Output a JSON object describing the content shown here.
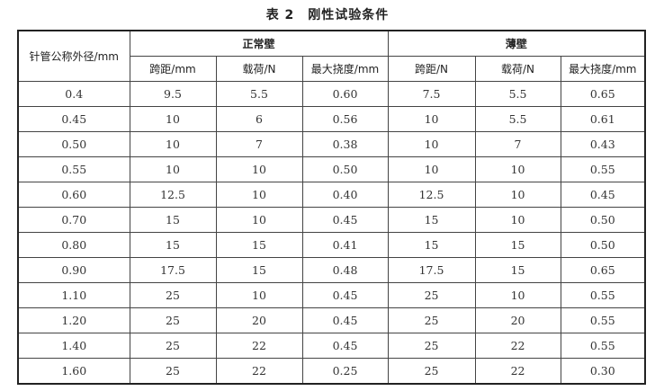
{
  "title": "表 2　刚性试验条件",
  "header": {
    "first_col": "针管公称外径/mm",
    "groups": [
      "正常壁",
      "薄壁"
    ],
    "sub": [
      "跨距/mm",
      "载荷/N",
      "最大挠度/mm",
      "跨距/N",
      "载荷/N",
      "最大挠度/mm"
    ]
  },
  "rows": [
    [
      "0.4",
      "9.5",
      "5.5",
      "0.60",
      "7.5",
      "5.5",
      "0.65"
    ],
    [
      "0.45",
      "10",
      "6",
      "0.56",
      "10",
      "5.5",
      "0.61"
    ],
    [
      "0.50",
      "10",
      "7",
      "0.38",
      "10",
      "7",
      "0.43"
    ],
    [
      "0.55",
      "10",
      "10",
      "0.50",
      "10",
      "10",
      "0.55"
    ],
    [
      "0.60",
      "12.5",
      "10",
      "0.40",
      "12.5",
      "10",
      "0.45"
    ],
    [
      "0.70",
      "15",
      "10",
      "0.45",
      "15",
      "10",
      "0.50"
    ],
    [
      "0.80",
      "15",
      "15",
      "0.41",
      "15",
      "15",
      "0.50"
    ],
    [
      "0.90",
      "17.5",
      "15",
      "0.48",
      "17.5",
      "15",
      "0.65"
    ],
    [
      "1.10",
      "25",
      "10",
      "0.45",
      "25",
      "10",
      "0.55"
    ],
    [
      "1.20",
      "25",
      "20",
      "0.45",
      "25",
      "20",
      "0.55"
    ],
    [
      "1.40",
      "25",
      "22",
      "0.45",
      "25",
      "22",
      "0.55"
    ],
    [
      "1.60",
      "25",
      "22",
      "0.25",
      "25",
      "22",
      "0.30"
    ]
  ]
}
